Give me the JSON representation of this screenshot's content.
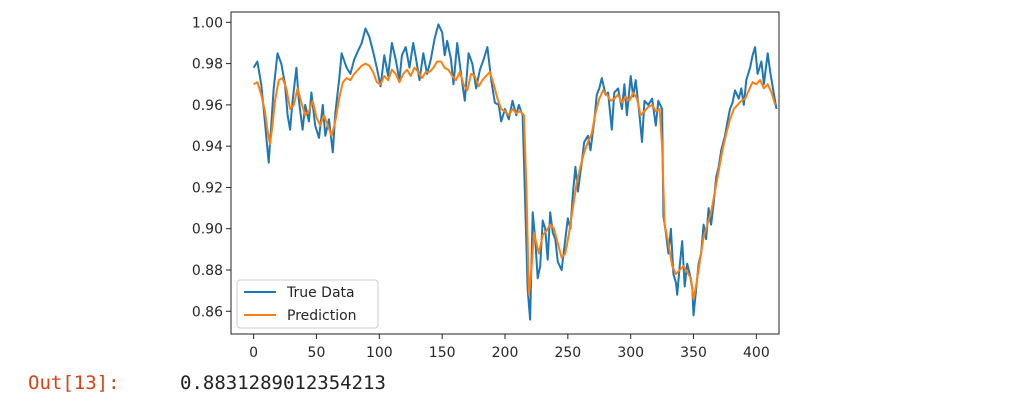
{
  "cell": {
    "prompt": "Out[13]:",
    "value": "0.8831289012354213"
  },
  "chart_data": {
    "type": "line",
    "xlim": [
      -18,
      418
    ],
    "ylim": [
      0.849,
      1.005
    ],
    "xticks": [
      "0",
      "50",
      "100",
      "150",
      "200",
      "250",
      "300",
      "350",
      "400"
    ],
    "yticks": [
      "0.86",
      "0.88",
      "0.90",
      "0.92",
      "0.94",
      "0.96",
      "0.98",
      "1.00"
    ],
    "legend_position": "lower-left",
    "grid": false,
    "series": [
      {
        "name": "True Data",
        "color": "#1f77b4",
        "points": [
          [
            0,
            0.978
          ],
          [
            3,
            0.981
          ],
          [
            6,
            0.97
          ],
          [
            8,
            0.958
          ],
          [
            10,
            0.945
          ],
          [
            12,
            0.932
          ],
          [
            14,
            0.95
          ],
          [
            16,
            0.968
          ],
          [
            19,
            0.985
          ],
          [
            22,
            0.98
          ],
          [
            25,
            0.97
          ],
          [
            27,
            0.955
          ],
          [
            29,
            0.948
          ],
          [
            31,
            0.962
          ],
          [
            34,
            0.978
          ],
          [
            36,
            0.962
          ],
          [
            39,
            0.948
          ],
          [
            41,
            0.96
          ],
          [
            44,
            0.952
          ],
          [
            46,
            0.966
          ],
          [
            49,
            0.95
          ],
          [
            52,
            0.944
          ],
          [
            55,
            0.96
          ],
          [
            57,
            0.945
          ],
          [
            60,
            0.953
          ],
          [
            63,
            0.937
          ],
          [
            65,
            0.956
          ],
          [
            68,
            0.972
          ],
          [
            70,
            0.985
          ],
          [
            74,
            0.978
          ],
          [
            77,
            0.975
          ],
          [
            80,
            0.982
          ],
          [
            83,
            0.986
          ],
          [
            86,
            0.99
          ],
          [
            89,
            0.997
          ],
          [
            92,
            0.993
          ],
          [
            95,
            0.986
          ],
          [
            98,
            0.978
          ],
          [
            101,
            0.969
          ],
          [
            104,
            0.984
          ],
          [
            107,
            0.974
          ],
          [
            110,
            0.99
          ],
          [
            113,
            0.982
          ],
          [
            116,
            0.972
          ],
          [
            118,
            0.984
          ],
          [
            121,
            0.988
          ],
          [
            124,
            0.978
          ],
          [
            127,
            0.99
          ],
          [
            129,
            0.983
          ],
          [
            132,
            0.972
          ],
          [
            135,
            0.985
          ],
          [
            138,
            0.975
          ],
          [
            141,
            0.982
          ],
          [
            144,
            0.992
          ],
          [
            147,
            0.999
          ],
          [
            150,
            0.995
          ],
          [
            152,
            0.984
          ],
          [
            154,
            0.991
          ],
          [
            157,
            0.982
          ],
          [
            159,
            0.97
          ],
          [
            162,
            0.99
          ],
          [
            165,
            0.975
          ],
          [
            168,
            0.962
          ],
          [
            171,
            0.985
          ],
          [
            174,
            0.98
          ],
          [
            177,
            0.968
          ],
          [
            180,
            0.977
          ],
          [
            183,
            0.982
          ],
          [
            186,
            0.988
          ],
          [
            189,
            0.972
          ],
          [
            192,
            0.961
          ],
          [
            195,
            0.96
          ],
          [
            197,
            0.952
          ],
          [
            200,
            0.958
          ],
          [
            203,
            0.953
          ],
          [
            206,
            0.962
          ],
          [
            209,
            0.955
          ],
          [
            211,
            0.96
          ],
          [
            214,
            0.955
          ],
          [
            217,
            0.892
          ],
          [
            218,
            0.871
          ],
          [
            220,
            0.856
          ],
          [
            222,
            0.908
          ],
          [
            224,
            0.895
          ],
          [
            226,
            0.876
          ],
          [
            228,
            0.882
          ],
          [
            230,
            0.904
          ],
          [
            232,
            0.9
          ],
          [
            234,
            0.885
          ],
          [
            236,
            0.908
          ],
          [
            238,
            0.898
          ],
          [
            240,
            0.895
          ],
          [
            242,
            0.884
          ],
          [
            245,
            0.88
          ],
          [
            247,
            0.89
          ],
          [
            250,
            0.905
          ],
          [
            252,
            0.9
          ],
          [
            254,
            0.917
          ],
          [
            256,
            0.93
          ],
          [
            258,
            0.918
          ],
          [
            261,
            0.932
          ],
          [
            263,
            0.942
          ],
          [
            266,
            0.945
          ],
          [
            268,
            0.938
          ],
          [
            271,
            0.952
          ],
          [
            273,
            0.965
          ],
          [
            275,
            0.968
          ],
          [
            277,
            0.973
          ],
          [
            280,
            0.965
          ],
          [
            282,
            0.966
          ],
          [
            285,
            0.948
          ],
          [
            287,
            0.966
          ],
          [
            290,
            0.968
          ],
          [
            293,
            0.958
          ],
          [
            295,
            0.97
          ],
          [
            297,
            0.955
          ],
          [
            300,
            0.974
          ],
          [
            302,
            0.964
          ],
          [
            304,
            0.972
          ],
          [
            307,
            0.955
          ],
          [
            309,
            0.942
          ],
          [
            311,
            0.962
          ],
          [
            314,
            0.96
          ],
          [
            317,
            0.963
          ],
          [
            320,
            0.95
          ],
          [
            322,
            0.962
          ],
          [
            325,
            0.958
          ],
          [
            326,
            0.906
          ],
          [
            328,
            0.898
          ],
          [
            330,
            0.888
          ],
          [
            332,
            0.9
          ],
          [
            334,
            0.878
          ],
          [
            336,
            0.874
          ],
          [
            337,
            0.868
          ],
          [
            339,
            0.882
          ],
          [
            341,
            0.894
          ],
          [
            343,
            0.872
          ],
          [
            345,
            0.883
          ],
          [
            347,
            0.878
          ],
          [
            349,
            0.871
          ],
          [
            350,
            0.858
          ],
          [
            352,
            0.87
          ],
          [
            354,
            0.883
          ],
          [
            356,
            0.888
          ],
          [
            358,
            0.902
          ],
          [
            360,
            0.895
          ],
          [
            362,
            0.91
          ],
          [
            364,
            0.902
          ],
          [
            366,
            0.912
          ],
          [
            368,
            0.925
          ],
          [
            370,
            0.93
          ],
          [
            372,
            0.938
          ],
          [
            375,
            0.945
          ],
          [
            377,
            0.952
          ],
          [
            379,
            0.958
          ],
          [
            381,
            0.961
          ],
          [
            383,
            0.967
          ],
          [
            386,
            0.963
          ],
          [
            388,
            0.968
          ],
          [
            390,
            0.96
          ],
          [
            392,
            0.972
          ],
          [
            395,
            0.978
          ],
          [
            397,
            0.984
          ],
          [
            399,
            0.988
          ],
          [
            401,
            0.975
          ],
          [
            404,
            0.981
          ],
          [
            406,
            0.97
          ],
          [
            409,
            0.985
          ],
          [
            411,
            0.976
          ],
          [
            414,
            0.965
          ],
          [
            416,
            0.958
          ]
        ]
      },
      {
        "name": "Prediction",
        "color": "#ff7f0e",
        "points": [
          [
            0,
            0.97
          ],
          [
            3,
            0.971
          ],
          [
            6,
            0.965
          ],
          [
            9,
            0.957
          ],
          [
            11,
            0.948
          ],
          [
            13,
            0.941
          ],
          [
            15,
            0.95
          ],
          [
            17,
            0.962
          ],
          [
            20,
            0.972
          ],
          [
            23,
            0.973
          ],
          [
            26,
            0.968
          ],
          [
            29,
            0.958
          ],
          [
            32,
            0.96
          ],
          [
            35,
            0.968
          ],
          [
            38,
            0.961
          ],
          [
            41,
            0.955
          ],
          [
            44,
            0.957
          ],
          [
            47,
            0.962
          ],
          [
            50,
            0.954
          ],
          [
            53,
            0.95
          ],
          [
            56,
            0.955
          ],
          [
            59,
            0.95
          ],
          [
            62,
            0.945
          ],
          [
            65,
            0.952
          ],
          [
            68,
            0.963
          ],
          [
            71,
            0.971
          ],
          [
            74,
            0.973
          ],
          [
            77,
            0.972
          ],
          [
            80,
            0.975
          ],
          [
            83,
            0.977
          ],
          [
            86,
            0.979
          ],
          [
            89,
            0.98
          ],
          [
            92,
            0.979
          ],
          [
            95,
            0.976
          ],
          [
            98,
            0.971
          ],
          [
            101,
            0.97
          ],
          [
            104,
            0.974
          ],
          [
            107,
            0.972
          ],
          [
            110,
            0.977
          ],
          [
            113,
            0.975
          ],
          [
            116,
            0.971
          ],
          [
            119,
            0.975
          ],
          [
            122,
            0.977
          ],
          [
            125,
            0.974
          ],
          [
            128,
            0.978
          ],
          [
            131,
            0.976
          ],
          [
            134,
            0.973
          ],
          [
            137,
            0.976
          ],
          [
            140,
            0.976
          ],
          [
            143,
            0.978
          ],
          [
            146,
            0.981
          ],
          [
            149,
            0.981
          ],
          [
            152,
            0.978
          ],
          [
            155,
            0.977
          ],
          [
            158,
            0.974
          ],
          [
            161,
            0.972
          ],
          [
            164,
            0.976
          ],
          [
            167,
            0.97
          ],
          [
            170,
            0.967
          ],
          [
            173,
            0.975
          ],
          [
            176,
            0.974
          ],
          [
            179,
            0.969
          ],
          [
            182,
            0.972
          ],
          [
            185,
            0.974
          ],
          [
            188,
            0.976
          ],
          [
            191,
            0.97
          ],
          [
            194,
            0.963
          ],
          [
            197,
            0.958
          ],
          [
            200,
            0.957
          ],
          [
            203,
            0.955
          ],
          [
            206,
            0.958
          ],
          [
            209,
            0.956
          ],
          [
            212,
            0.957
          ],
          [
            215,
            0.955
          ],
          [
            217,
            0.92
          ],
          [
            219,
            0.868
          ],
          [
            221,
            0.88
          ],
          [
            223,
            0.898
          ],
          [
            225,
            0.893
          ],
          [
            227,
            0.888
          ],
          [
            230,
            0.897
          ],
          [
            233,
            0.899
          ],
          [
            236,
            0.902
          ],
          [
            239,
            0.9
          ],
          [
            242,
            0.893
          ],
          [
            245,
            0.886
          ],
          [
            248,
            0.888
          ],
          [
            251,
            0.898
          ],
          [
            254,
            0.91
          ],
          [
            257,
            0.922
          ],
          [
            260,
            0.93
          ],
          [
            263,
            0.937
          ],
          [
            266,
            0.942
          ],
          [
            269,
            0.946
          ],
          [
            272,
            0.956
          ],
          [
            275,
            0.963
          ],
          [
            278,
            0.967
          ],
          [
            281,
            0.965
          ],
          [
            284,
            0.962
          ],
          [
            287,
            0.963
          ],
          [
            290,
            0.965
          ],
          [
            293,
            0.961
          ],
          [
            296,
            0.964
          ],
          [
            299,
            0.962
          ],
          [
            302,
            0.966
          ],
          [
            305,
            0.963
          ],
          [
            308,
            0.955
          ],
          [
            311,
            0.957
          ],
          [
            314,
            0.959
          ],
          [
            317,
            0.96
          ],
          [
            320,
            0.957
          ],
          [
            323,
            0.958
          ],
          [
            325,
            0.94
          ],
          [
            327,
            0.902
          ],
          [
            330,
            0.893
          ],
          [
            333,
            0.882
          ],
          [
            336,
            0.878
          ],
          [
            339,
            0.88
          ],
          [
            342,
            0.882
          ],
          [
            345,
            0.879
          ],
          [
            348,
            0.876
          ],
          [
            350,
            0.866
          ],
          [
            352,
            0.872
          ],
          [
            355,
            0.884
          ],
          [
            358,
            0.896
          ],
          [
            361,
            0.902
          ],
          [
            364,
            0.908
          ],
          [
            367,
            0.918
          ],
          [
            370,
            0.928
          ],
          [
            373,
            0.938
          ],
          [
            376,
            0.946
          ],
          [
            379,
            0.953
          ],
          [
            382,
            0.958
          ],
          [
            385,
            0.96
          ],
          [
            388,
            0.962
          ],
          [
            391,
            0.963
          ],
          [
            394,
            0.967
          ],
          [
            397,
            0.971
          ],
          [
            400,
            0.97
          ],
          [
            403,
            0.972
          ],
          [
            406,
            0.968
          ],
          [
            409,
            0.97
          ],
          [
            412,
            0.966
          ],
          [
            415,
            0.96
          ]
        ]
      }
    ]
  }
}
